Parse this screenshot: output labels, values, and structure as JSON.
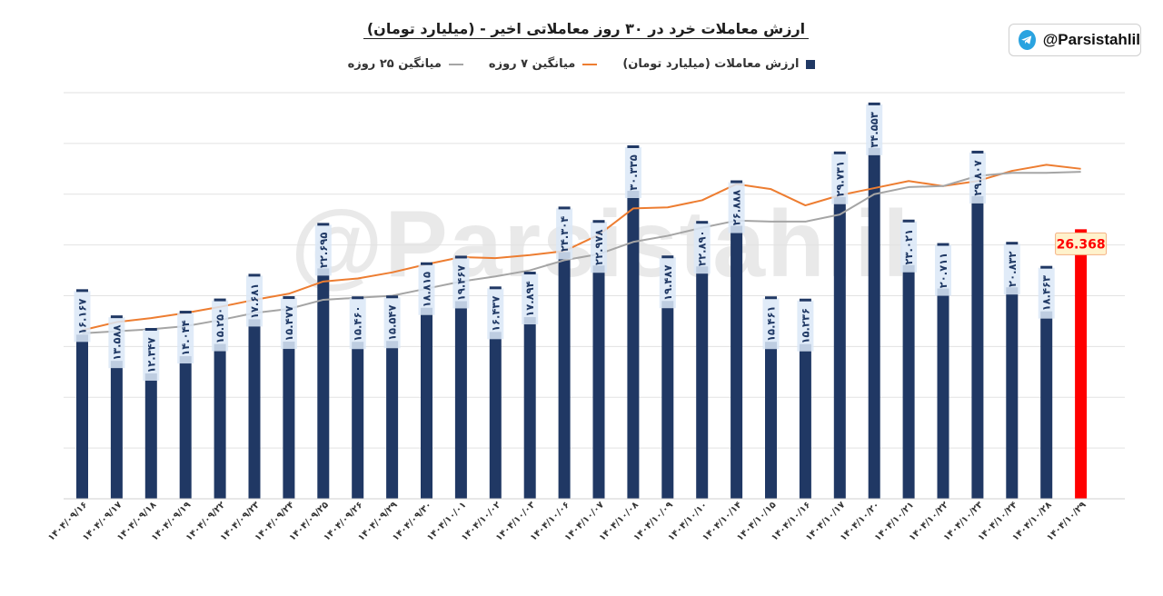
{
  "header": {
    "title": "ارزش معاملات خرد در ۳۰ روز معاملاتی اخیر - (میلیارد تومان)",
    "handle": "@Parsistahlil",
    "watermark": "@Parsistahlil"
  },
  "chart_data": {
    "type": "bar",
    "categories": [
      "۱۴۰۴/۰۹/۱۶",
      "۱۴۰۴/۰۹/۱۷",
      "۱۴۰۴/۰۹/۱۸",
      "۱۴۰۴/۰۹/۱۹",
      "۱۴۰۴/۰۹/۲۲",
      "۱۴۰۴/۰۹/۲۳",
      "۱۴۰۴/۰۹/۲۴",
      "۱۴۰۴/۰۹/۲۵",
      "۱۴۰۴/۰۹/۲۶",
      "۱۴۰۴/۰۹/۲۹",
      "۱۴۰۴/۰۹/۳۰",
      "۱۴۰۴/۱۰/۰۱",
      "۱۴۰۴/۱۰/۰۲",
      "۱۴۰۴/۱۰/۰۳",
      "۱۴۰۴/۱۰/۰۶",
      "۱۴۰۴/۱۰/۰۷",
      "۱۴۰۴/۱۰/۰۸",
      "۱۴۰۴/۱۰/۰۹",
      "۱۴۰۴/۱۰/۱۰",
      "۱۴۰۴/۱۰/۱۴",
      "۱۴۰۴/۱۰/۱۵",
      "۱۴۰۴/۱۰/۱۶",
      "۱۴۰۴/۱۰/۱۷",
      "۱۴۰۴/۱۰/۲۰",
      "۱۴۰۴/۱۰/۲۱",
      "۱۴۰۴/۱۰/۲۲",
      "۱۴۰۴/۱۰/۲۳",
      "۱۴۰۴/۱۰/۲۴",
      "۱۴۰۴/۱۰/۲۸",
      "۱۴۰۴/۱۰/۲۹"
    ],
    "series": [
      {
        "name": "ارزش معاملات (میلیارد تومان)",
        "kind": "bar",
        "color": "#203864",
        "highlight_color": "#ff0000",
        "values": [
          16.167,
          13.588,
          12.347,
          14.044,
          15.25,
          17.681,
          15.477,
          22.695,
          15.46,
          15.547,
          18.815,
          19.467,
          16.437,
          17.894,
          24.304,
          22.978,
          30.335,
          19.487,
          22.89,
          26.888,
          15.461,
          15.236,
          29.731,
          34.553,
          23.021,
          20.711,
          29.807,
          20.832,
          18.463,
          26.368
        ],
        "labels": [
          "۱۶.۱۶۷",
          "۱۳.۵۸۸",
          "۱۲.۳۴۷",
          "۱۴.۰۴۴",
          "۱۵.۲۵۰",
          "۱۷.۶۸۱",
          "۱۵.۴۷۷",
          "۲۲.۶۹۵",
          "۱۵.۴۶۰",
          "۱۵.۵۴۷",
          "۱۸.۸۱۵",
          "۱۹.۴۶۷",
          "۱۶.۴۳۷",
          "۱۷.۸۹۴",
          "۲۴.۳۰۴",
          "۲۲.۹۷۸",
          "۳۰.۳۳۵",
          "۱۹.۴۸۷",
          "۲۲.۸۹۰",
          "۲۶.۸۸۸",
          "۱۵.۴۶۱",
          "۱۵.۲۳۶",
          "۲۹.۷۳۱",
          "۳۴.۵۵۳",
          "۲۳.۰۲۱",
          "۲۰.۷۱۱",
          "۲۹.۸۰۷",
          "۲۰.۸۳۲",
          "۱۸.۴۶۳",
          "26.368"
        ]
      },
      {
        "name": "میانگین ۷ روزه",
        "kind": "line",
        "color": "#ed7d31",
        "values": [
          16.6,
          17.4,
          17.8,
          18.3,
          18.9,
          19.6,
          20.2,
          21.4,
          21.7,
          22.3,
          23.1,
          23.8,
          23.7,
          24.0,
          24.4,
          26.0,
          28.6,
          28.7,
          29.4,
          31.0,
          30.5,
          28.9,
          29.9,
          30.6,
          31.3,
          30.8,
          31.3,
          32.3,
          32.9,
          32.5
        ]
      },
      {
        "name": "میانگین ۲۵ روزه",
        "kind": "line",
        "color": "#a5a5a5",
        "values": [
          16.3,
          16.5,
          16.7,
          17.0,
          17.6,
          18.3,
          18.7,
          19.6,
          19.8,
          20.0,
          20.7,
          21.4,
          21.9,
          22.5,
          23.5,
          24.1,
          25.3,
          25.9,
          26.7,
          27.4,
          27.3,
          27.3,
          28.0,
          30.0,
          30.7,
          30.8,
          31.8,
          32.1,
          32.1,
          32.2
        ]
      }
    ],
    "ylim": [
      0,
      40
    ],
    "grid": true,
    "legend": "top-center"
  }
}
